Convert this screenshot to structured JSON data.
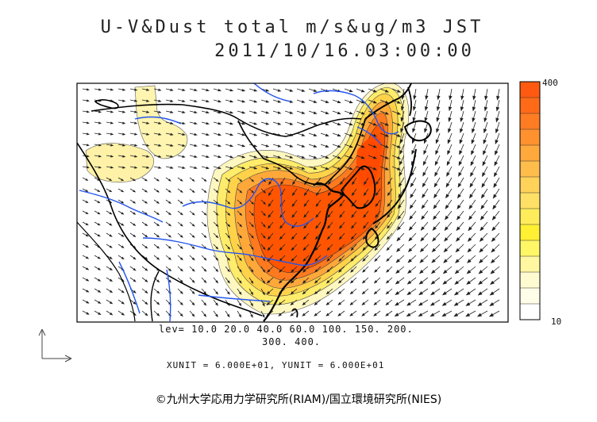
{
  "title_line1": "U-V&Dust total m/s&ug/m3 JST",
  "title_line2": "2011/10/16.03:00:00",
  "colorbar": {
    "max_label": "400",
    "min_label": "10",
    "colors": [
      "#ff5a10",
      "#ff6a18",
      "#ff7d22",
      "#ff922e",
      "#ffa83c",
      "#ffbe4c",
      "#ffd25a",
      "#ffe066",
      "#ffec5a",
      "#fff033",
      "#fff766",
      "#fff8a0",
      "#fffbd0",
      "#fffde8",
      "#ffffff"
    ]
  },
  "levels_line1": "lev= 10.0 20.0 40.0 60.0 100. 150. 200.",
  "levels_line2": "300. 400.",
  "units_text": "XUNIT = 6.000E+01, YUNIT = 6.000E+01",
  "credit": "©九州大学応用力学研究所(RIAM)/国立環境研究所(NIES)",
  "colors": {
    "dust_high": "#ff5500",
    "dust_mid": "#ffb030",
    "dust_low": "#fff27a",
    "dust_faint": "#fff7c0",
    "rivers": "#2255ee",
    "coast": "#000000"
  }
}
